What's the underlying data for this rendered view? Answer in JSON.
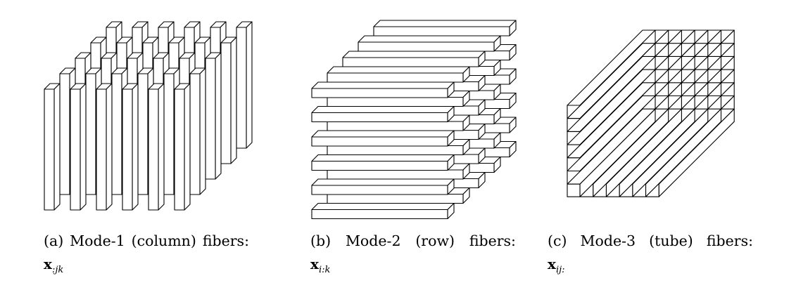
{
  "figures": [
    {
      "id": "a",
      "caption_words": [
        "(a)",
        "Mode-1",
        "(column)",
        "fibers:"
      ],
      "math_symbol": "x",
      "math_subscript": ":jk",
      "fiber_orientation": "vertical"
    },
    {
      "id": "b",
      "caption_words": [
        "(b)",
        "Mode-2",
        "(row)",
        "fibers:"
      ],
      "math_symbol": "x",
      "math_subscript": "i:k",
      "fiber_orientation": "horizontal"
    },
    {
      "id": "c",
      "caption_words": [
        "(c)",
        "Mode-3",
        "(tube)",
        "fibers:"
      ],
      "math_symbol": "x",
      "math_subscript": "ij:",
      "fiber_orientation": "depth"
    }
  ],
  "colors": {
    "stroke": "#000000",
    "fill": "#ffffff"
  }
}
